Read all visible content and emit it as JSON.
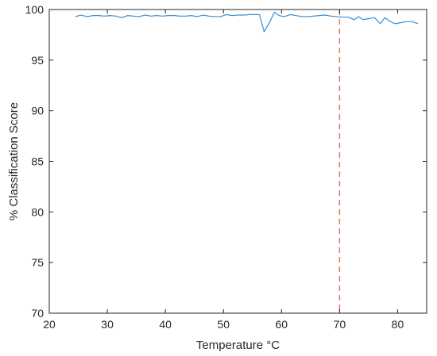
{
  "chart_data": {
    "type": "line",
    "title": "",
    "xlabel": "Temperature °C",
    "ylabel": "% Classification Score",
    "xlim": [
      20,
      85
    ],
    "ylim": [
      70,
      100
    ],
    "xticks": [
      20,
      30,
      40,
      50,
      60,
      70,
      80
    ],
    "yticks": [
      70,
      75,
      80,
      85,
      90,
      95,
      100
    ],
    "grid": false,
    "legend": "none",
    "series": [
      {
        "color": "#3a8fd0",
        "x": [
          24.5,
          25.5,
          26.5,
          27.5,
          28.5,
          29.5,
          30.5,
          31.5,
          32.5,
          33.5,
          34.5,
          35.5,
          36.5,
          37.5,
          38.5,
          39.5,
          40.5,
          41.5,
          42.5,
          43.5,
          44.5,
          45.5,
          46.5,
          47.5,
          48.5,
          49.5,
          50.5,
          51.5,
          52.5,
          53.5,
          54.5,
          55.5,
          56.2,
          57.0,
          58.0,
          58.8,
          59.6,
          60.5,
          61.5,
          62.5,
          63.5,
          64.5,
          65.5,
          66.5,
          67.5,
          68.5,
          69.5,
          70.5,
          71.5,
          72.5,
          73.3,
          74.0,
          75.0,
          76.0,
          77.0,
          77.8,
          78.5,
          79.5,
          80.5,
          81.5,
          82.5,
          83.5
        ],
        "y": [
          99.3,
          99.45,
          99.3,
          99.4,
          99.4,
          99.35,
          99.4,
          99.35,
          99.2,
          99.4,
          99.35,
          99.3,
          99.45,
          99.35,
          99.4,
          99.35,
          99.4,
          99.4,
          99.35,
          99.35,
          99.4,
          99.3,
          99.45,
          99.35,
          99.3,
          99.3,
          99.5,
          99.4,
          99.45,
          99.45,
          99.5,
          99.5,
          99.5,
          97.8,
          98.8,
          99.75,
          99.4,
          99.3,
          99.5,
          99.4,
          99.3,
          99.3,
          99.35,
          99.4,
          99.45,
          99.35,
          99.3,
          99.25,
          99.25,
          99.0,
          99.3,
          99.0,
          99.1,
          99.2,
          98.6,
          99.2,
          98.9,
          98.6,
          98.7,
          98.8,
          98.8,
          98.6
        ]
      }
    ],
    "reference_lines": [
      {
        "orientation": "vertical",
        "x": 70,
        "color": "#e8736f",
        "style": "dashed"
      }
    ]
  }
}
